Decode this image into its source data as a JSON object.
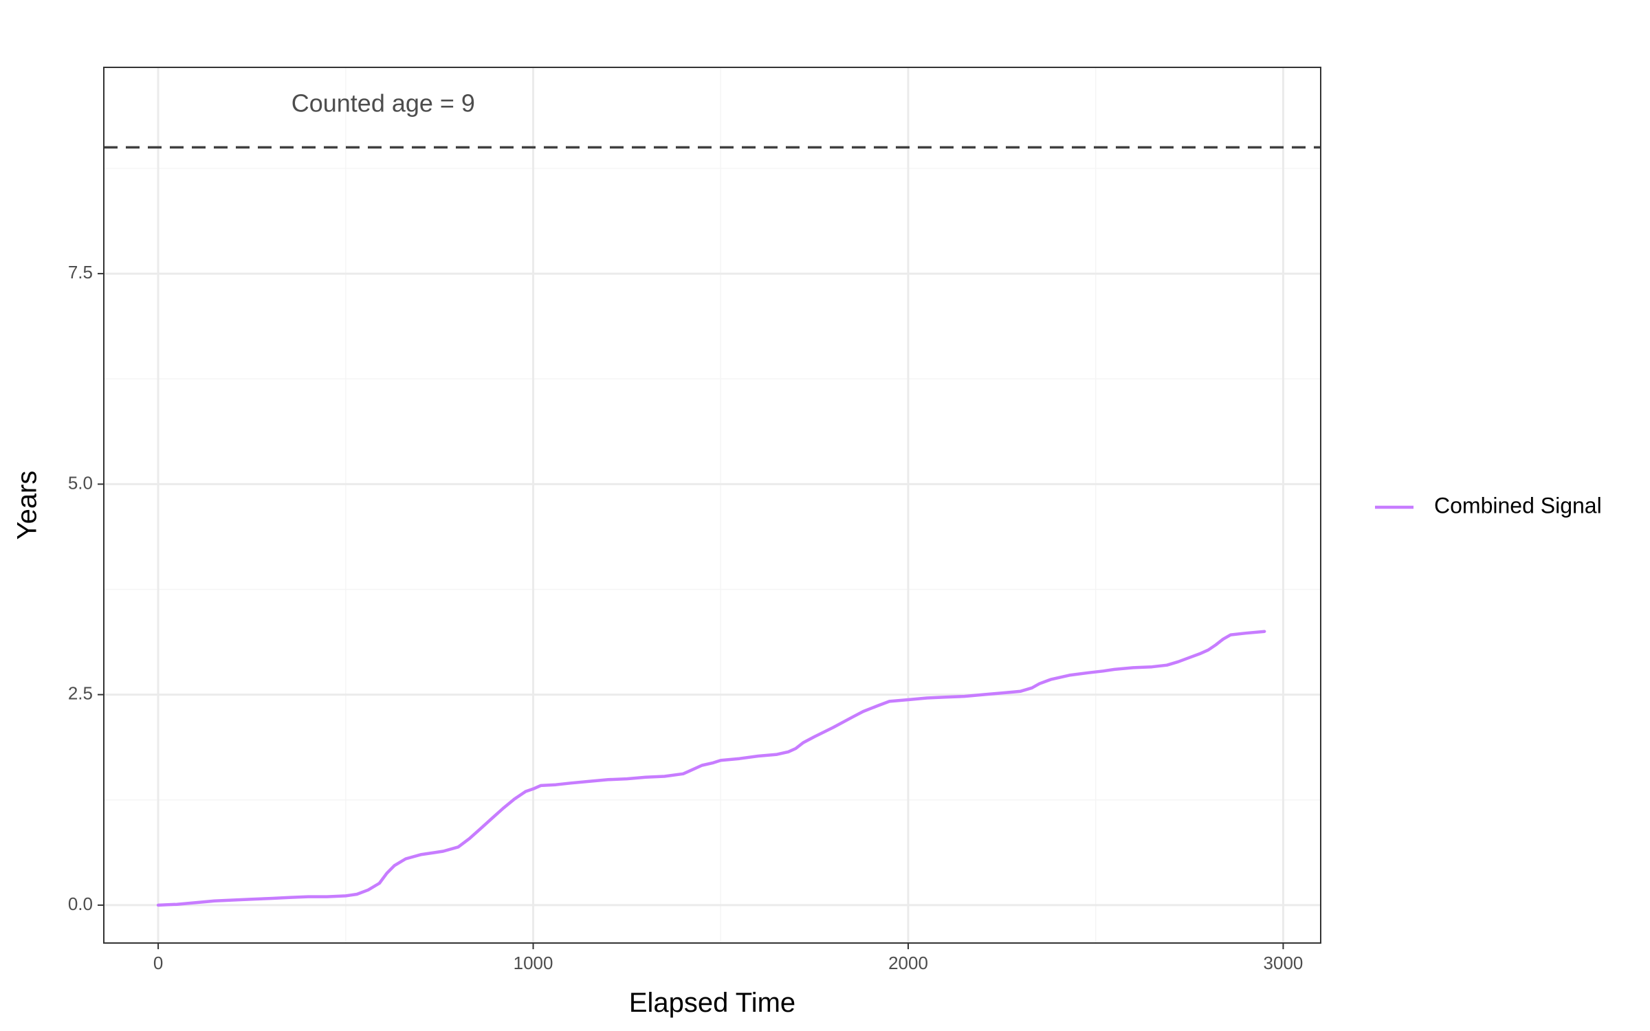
{
  "colors": {
    "series": "#c77cff",
    "grid_major": "#ebebeb",
    "grid_minor": "#f5f5f5",
    "panel_border": "#333333",
    "reference_line": "#404040",
    "tick_text": "#4d4d4d"
  },
  "chart_data": {
    "type": "line",
    "title": "",
    "xlabel": "Elapsed Time",
    "ylabel": "Years",
    "xlim": [
      -145,
      3100
    ],
    "ylim": [
      -0.45,
      9.95
    ],
    "x_ticks": [
      0,
      1000,
      2000,
      3000
    ],
    "x_tick_labels": [
      "0",
      "1000",
      "2000",
      "3000"
    ],
    "x_minor_ticks": [
      500,
      1500,
      2500
    ],
    "y_ticks": [
      0,
      2.5,
      5,
      7.5
    ],
    "y_tick_labels": [
      "0.0",
      "2.5",
      "5.0",
      "7.5"
    ],
    "y_minor_ticks": [
      1.25,
      3.75,
      6.25,
      8.75
    ],
    "grid": true,
    "legend_position": "right",
    "reference_line": {
      "y": 9,
      "style": "dashed"
    },
    "annotation": {
      "text": "Counted age =  9",
      "x": 600,
      "y": 9.5
    },
    "series": [
      {
        "name": "Combined Signal",
        "x": [
          0,
          50,
          100,
          150,
          200,
          250,
          300,
          350,
          400,
          450,
          500,
          530,
          560,
          590,
          610,
          630,
          660,
          700,
          760,
          800,
          830,
          860,
          890,
          920,
          950,
          980,
          1000,
          1020,
          1060,
          1100,
          1150,
          1200,
          1250,
          1300,
          1350,
          1400,
          1420,
          1450,
          1480,
          1500,
          1550,
          1600,
          1650,
          1680,
          1700,
          1720,
          1750,
          1800,
          1850,
          1880,
          1920,
          1950,
          2000,
          2050,
          2100,
          2150,
          2200,
          2250,
          2300,
          2330,
          2350,
          2380,
          2430,
          2480,
          2520,
          2550,
          2600,
          2650,
          2690,
          2720,
          2750,
          2780,
          2800,
          2820,
          2840,
          2860,
          2900,
          2950
        ],
        "values": [
          0.0,
          0.01,
          0.03,
          0.05,
          0.06,
          0.07,
          0.08,
          0.09,
          0.1,
          0.1,
          0.11,
          0.13,
          0.18,
          0.26,
          0.38,
          0.47,
          0.55,
          0.6,
          0.64,
          0.69,
          0.79,
          0.91,
          1.03,
          1.15,
          1.26,
          1.35,
          1.38,
          1.42,
          1.43,
          1.45,
          1.47,
          1.49,
          1.5,
          1.52,
          1.53,
          1.56,
          1.6,
          1.66,
          1.69,
          1.72,
          1.74,
          1.77,
          1.79,
          1.82,
          1.86,
          1.93,
          2.0,
          2.11,
          2.23,
          2.3,
          2.37,
          2.42,
          2.44,
          2.46,
          2.47,
          2.48,
          2.5,
          2.52,
          2.54,
          2.58,
          2.63,
          2.68,
          2.73,
          2.76,
          2.78,
          2.8,
          2.82,
          2.83,
          2.85,
          2.89,
          2.94,
          2.99,
          3.03,
          3.09,
          3.16,
          3.21,
          3.23,
          3.25
        ]
      }
    ]
  }
}
